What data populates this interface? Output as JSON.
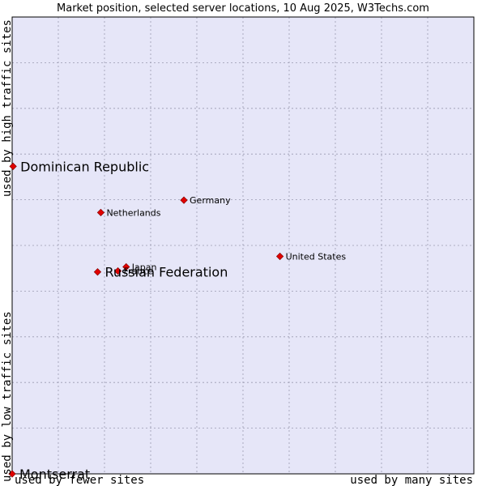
{
  "chart_data": {
    "type": "scatter",
    "title": "Market position, selected server locations, 10 Aug 2025, W3Techs.com",
    "xlabel_left": "used by fewer sites",
    "xlabel_right": "used by many sites",
    "ylabel_bottom": "used by low traffic sites",
    "ylabel_top": "used by high traffic sites",
    "xlim": [
      0,
      100
    ],
    "ylim": [
      0,
      100
    ],
    "grid": true,
    "colors": {
      "plot_bg": "#e6e6f8",
      "grid": "#9a9ab0",
      "border": "#000000",
      "marker": "#e00000",
      "marker_edge": "#7a0000"
    },
    "points": [
      {
        "label": "Dominican Republic",
        "x": 0.2,
        "y": 67.3,
        "size": "large"
      },
      {
        "label": "Germany",
        "x": 37.2,
        "y": 59.9,
        "size": "small"
      },
      {
        "label": "Netherlands",
        "x": 19.2,
        "y": 57.2,
        "size": "small"
      },
      {
        "label": "United States",
        "x": 58.0,
        "y": 47.6,
        "size": "small"
      },
      {
        "label": "Japan",
        "x": 24.7,
        "y": 45.3,
        "size": "small"
      },
      {
        "label": "France",
        "x": 22.9,
        "y": 44.4,
        "size": "small"
      },
      {
        "label": "Russian Federation",
        "x": 18.5,
        "y": 44.2,
        "size": "large"
      },
      {
        "label": "Montserrat",
        "x": 0.0,
        "y": 0.0,
        "size": "large"
      }
    ]
  }
}
